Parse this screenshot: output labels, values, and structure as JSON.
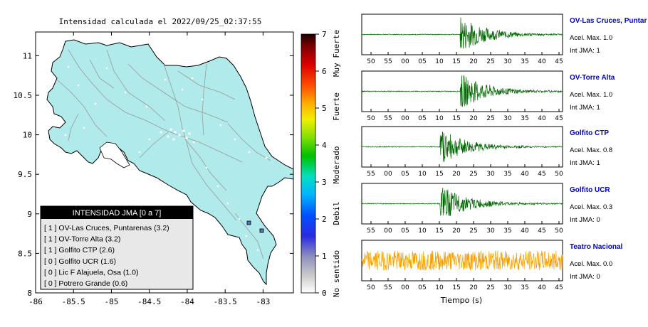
{
  "map": {
    "title": "Intensidad calculada el 2022/09/25_02:37:55",
    "x_ticks": [
      "-86",
      "-85.5",
      "-85",
      "-84.5",
      "-84",
      "-83.5",
      "-83"
    ],
    "x_values": [
      -86,
      -85.5,
      -85,
      -84.5,
      -84,
      -83.5,
      -83
    ],
    "y_ticks": [
      "11",
      "10.5",
      "10",
      "9.5",
      "9",
      "8.5",
      "8"
    ],
    "y_values": [
      11,
      10.5,
      10,
      9.5,
      9,
      8.5,
      8
    ],
    "xlim": [
      -86,
      -82.6
    ],
    "ylim": [
      8,
      11.3
    ],
    "land_color": "#b0eaea",
    "legend": {
      "title": "INTENSIDAD JMA [0 a 7]",
      "items": [
        "[ 1 ]  OV-Las Cruces, Puntarenas (3.2)",
        "[ 1 ]  OV-Torre Alta (3.2)",
        "[ 1 ]  Golfito CTP (2.6)",
        "[ 0 ]  Golfito UCR (1.6)",
        "[ 0 ]  Lic F Alajuela, Osa (1.0)",
        "[ 0 ]  Potrero Grande (0.6)"
      ]
    }
  },
  "colorbar": {
    "ticks": [
      "0",
      "1",
      "2",
      "3",
      "4",
      "5",
      "6",
      "7"
    ],
    "labels": [
      "No sentido",
      "Debil",
      "Moderado",
      "Fuerte",
      "Muy Fuerte"
    ]
  },
  "stations": [
    {
      "name": "OV-Las Cruces, Puntar",
      "acel": "Acel. Max. 1.0",
      "int": "Int JMA: 1",
      "ticks": [
        "50",
        "55",
        "00",
        "05",
        "10",
        "15",
        "20",
        "25",
        "30",
        "35",
        "40",
        "45"
      ],
      "color": "#006400",
      "event_at": 0.49
    },
    {
      "name": "OV-Torre Alta",
      "acel": "Acel. Max. 1.0",
      "int": "Int JMA: 1",
      "ticks": [
        "50",
        "55",
        "00",
        "05",
        "10",
        "15",
        "20",
        "25",
        "30",
        "35",
        "40",
        "45"
      ],
      "color": "#006400",
      "event_at": 0.49
    },
    {
      "name": "Golfito CTP",
      "acel": "Acel. Max. 0.8",
      "int": "Int JMA: 1",
      "ticks": [
        "55",
        "00",
        "05",
        "10",
        "15",
        "20",
        "25",
        "30",
        "35",
        "40",
        "45",
        "50"
      ],
      "color": "#006400",
      "event_at": 0.39
    },
    {
      "name": "Golfito UCR",
      "acel": "Acel. Max. 0.3",
      "int": "Int JMA: 0",
      "ticks": [
        "55",
        "00",
        "05",
        "10",
        "15",
        "20",
        "25",
        "30",
        "35",
        "40",
        "45",
        "50"
      ],
      "color": "#006400",
      "event_at": 0.39
    },
    {
      "name": "Teatro Nacional",
      "acel": "Acel. Max. 0.0",
      "int": "Int JMA: 0",
      "ticks": [
        "50",
        "55",
        "00",
        "05",
        "10",
        "15",
        "20",
        "25",
        "30",
        "35",
        "40",
        "45"
      ],
      "color": "#f5a000",
      "event_at": -1
    }
  ],
  "time_axis_label": "Tiempo (s)",
  "chart_data": [
    {
      "type": "map",
      "title": "Intensidad calculada el 2022/09/25_02:37:55",
      "xlim": [
        -86,
        -82.6
      ],
      "ylim": [
        8,
        11.3
      ],
      "stations_marked": [
        {
          "lon": -83.15,
          "lat": 8.88
        },
        {
          "lon": -83.03,
          "lat": 8.77
        }
      ]
    },
    {
      "type": "line",
      "series": [
        {
          "name": "OV-Las Cruces, Puntar",
          "peak": 1.0
        }
      ]
    },
    {
      "type": "line",
      "series": [
        {
          "name": "OV-Torre Alta",
          "peak": 1.0
        }
      ]
    },
    {
      "type": "line",
      "series": [
        {
          "name": "Golfito CTP",
          "peak": 0.8
        }
      ]
    },
    {
      "type": "line",
      "series": [
        {
          "name": "Golfito UCR",
          "peak": 0.3
        }
      ]
    },
    {
      "type": "line",
      "series": [
        {
          "name": "Teatro Nacional",
          "peak": 0.0
        }
      ],
      "xlabel": "Tiempo (s)"
    }
  ]
}
